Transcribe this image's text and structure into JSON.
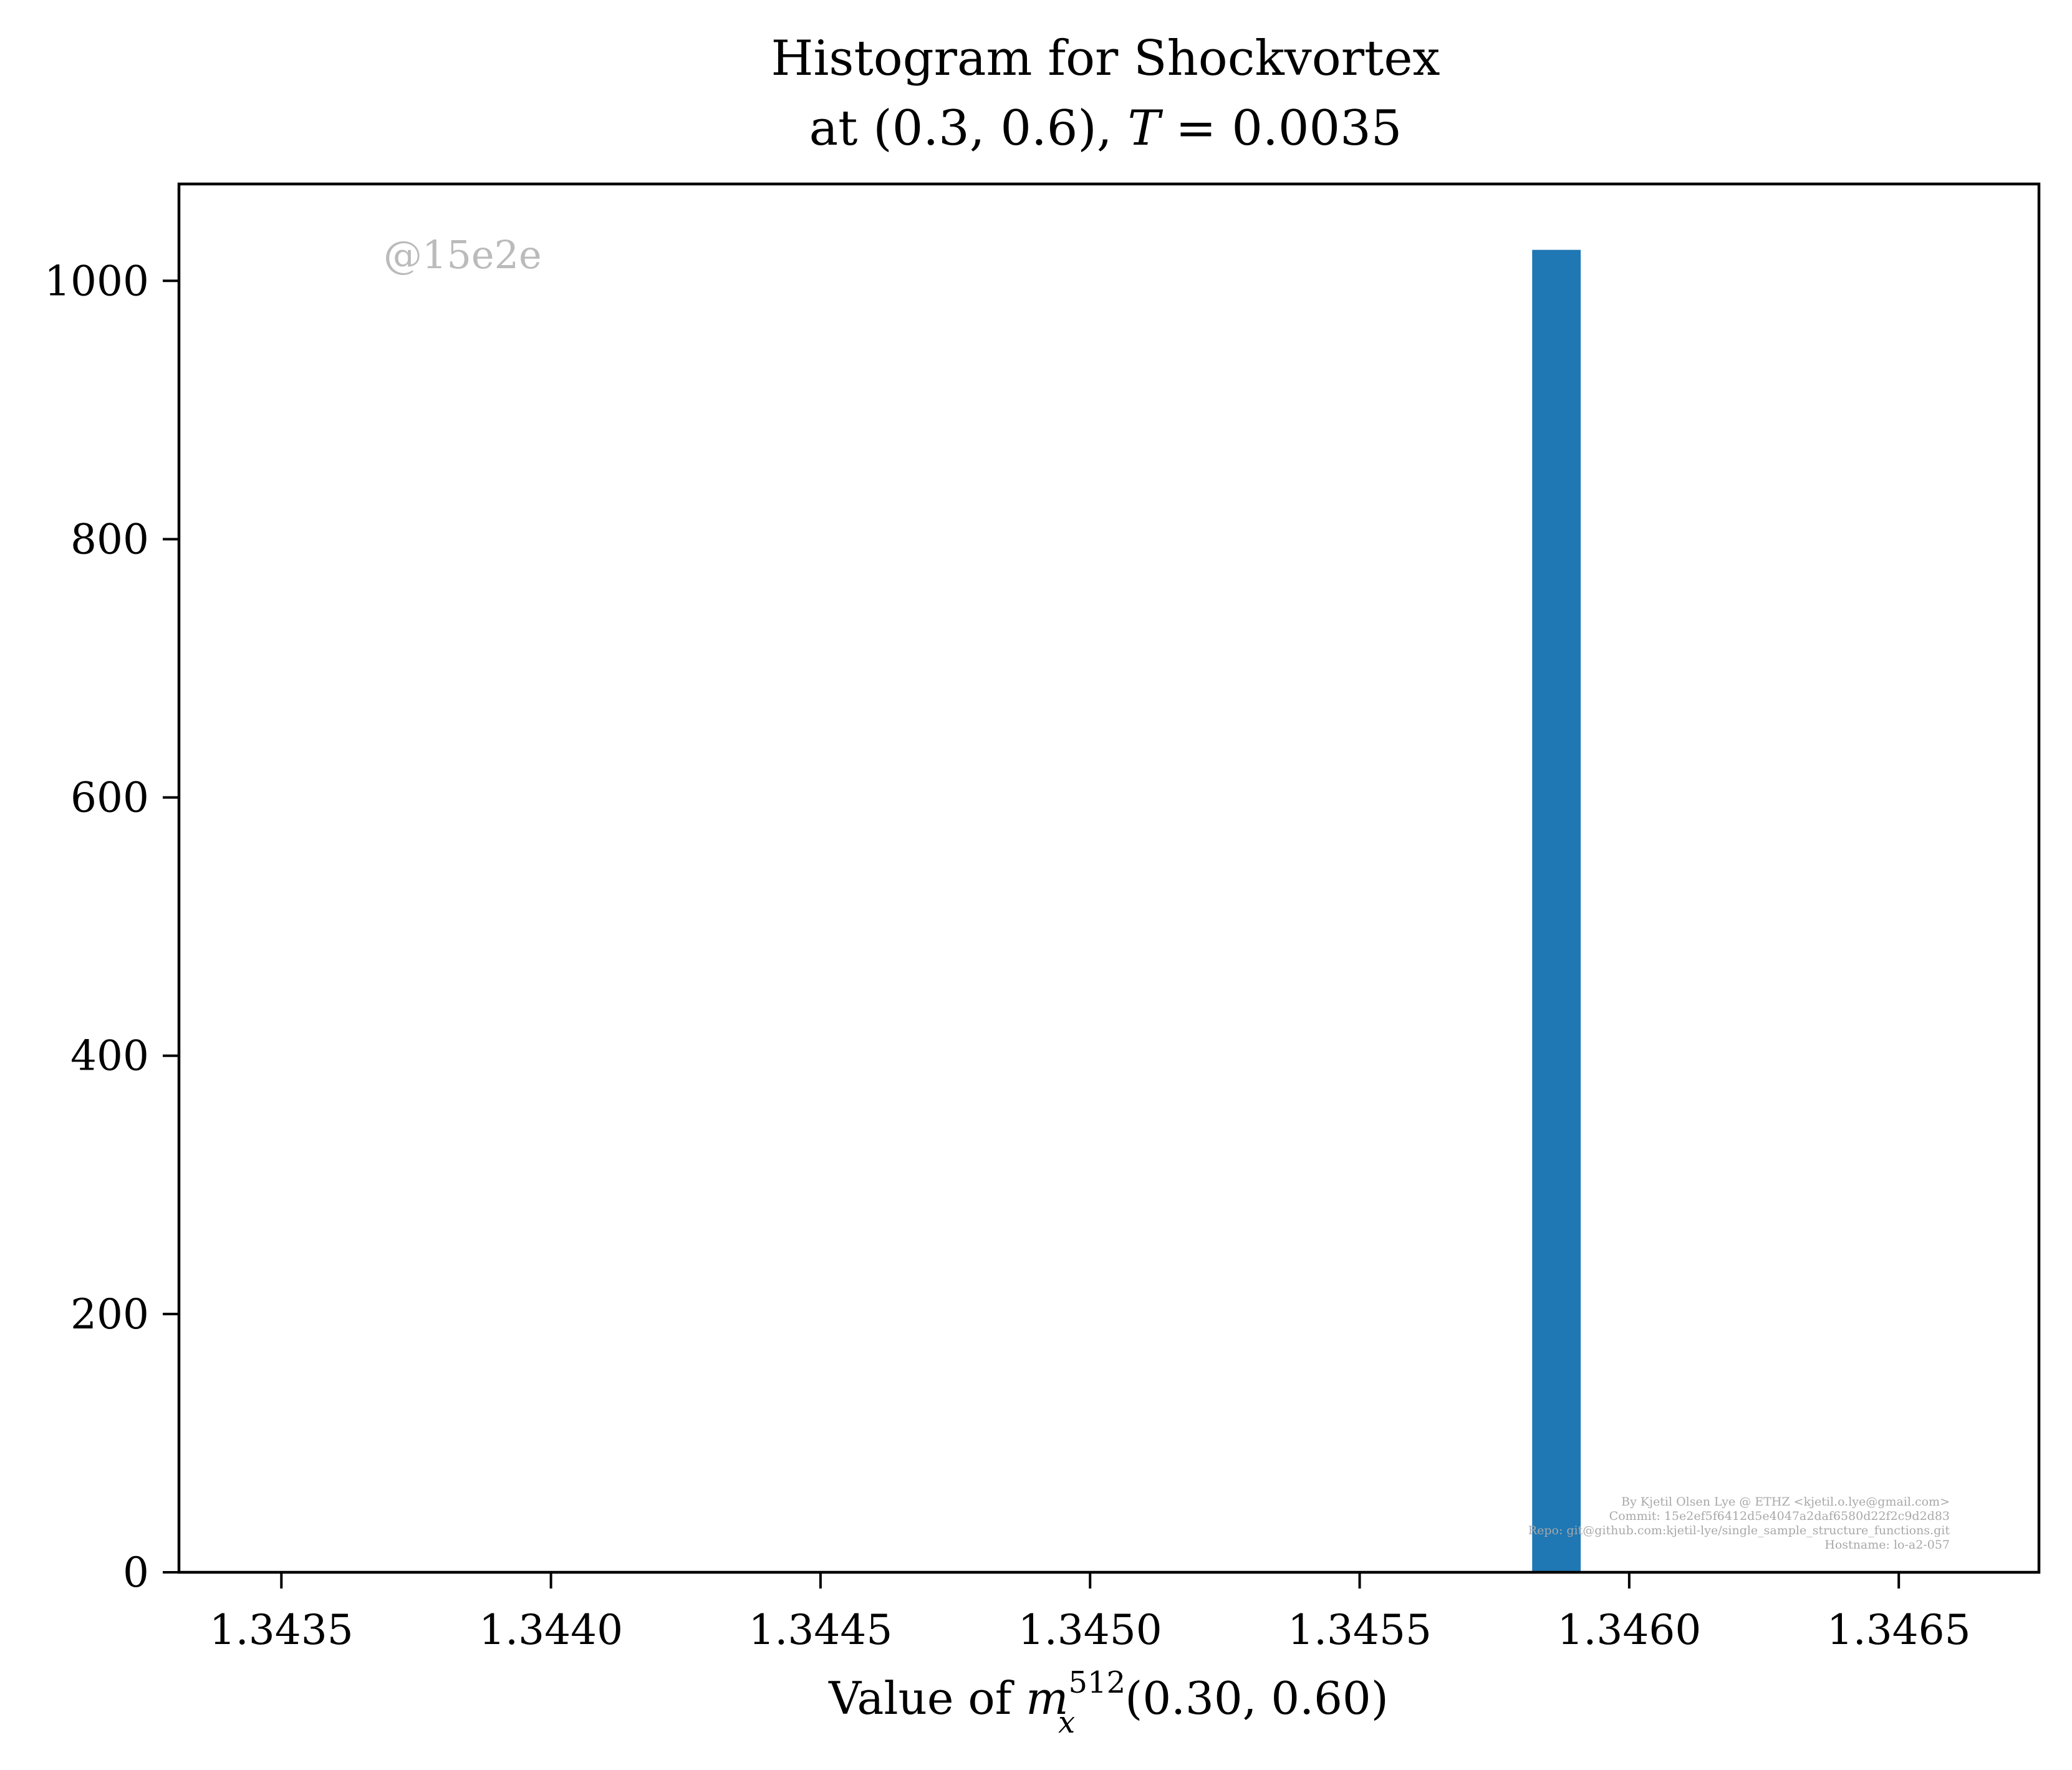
{
  "chart_data": {
    "type": "bar",
    "title_line1": "Histogram for Shockvortex",
    "title_line2_prefix": "at (0.3, 0.6), ",
    "title_line2_italic": "T",
    "title_line2_suffix": " = 0.0035",
    "xlabel_prefix": "Value of ",
    "xlabel_var": "m",
    "xlabel_sup": "512",
    "xlabel_sub": "x",
    "xlabel_suffix": "(0.30, 0.60)",
    "xlim": [
      1.34331,
      1.34676
    ],
    "ylim": [
      0,
      1075
    ],
    "xticks": [
      "1.3435",
      "1.3440",
      "1.3445",
      "1.3450",
      "1.3455",
      "1.3460",
      "1.3465"
    ],
    "xtick_values": [
      1.3435,
      1.344,
      1.3445,
      1.345,
      1.3455,
      1.346,
      1.3465
    ],
    "yticks": [
      "0",
      "200",
      "400",
      "600",
      "800",
      "1000"
    ],
    "ytick_values": [
      0,
      200,
      400,
      600,
      800,
      1000
    ],
    "bars": [
      {
        "x0": 1.34582,
        "x1": 1.34591,
        "value": 1024
      }
    ],
    "bar_color": "#1f77b4",
    "grid": false,
    "watermark": "@15e2e",
    "footer_lines": [
      "By Kjetil Olsen Lye @ ETHZ <kjetil.o.lye@gmail.com>",
      "Commit: 15e2ef5f6412d5e4047a2daf6580d22f2c9d2d83",
      "Repo: git@github.com:kjetil-lye/single_sample_structure_functions.git",
      "Hostname: lo-a2-057"
    ]
  }
}
